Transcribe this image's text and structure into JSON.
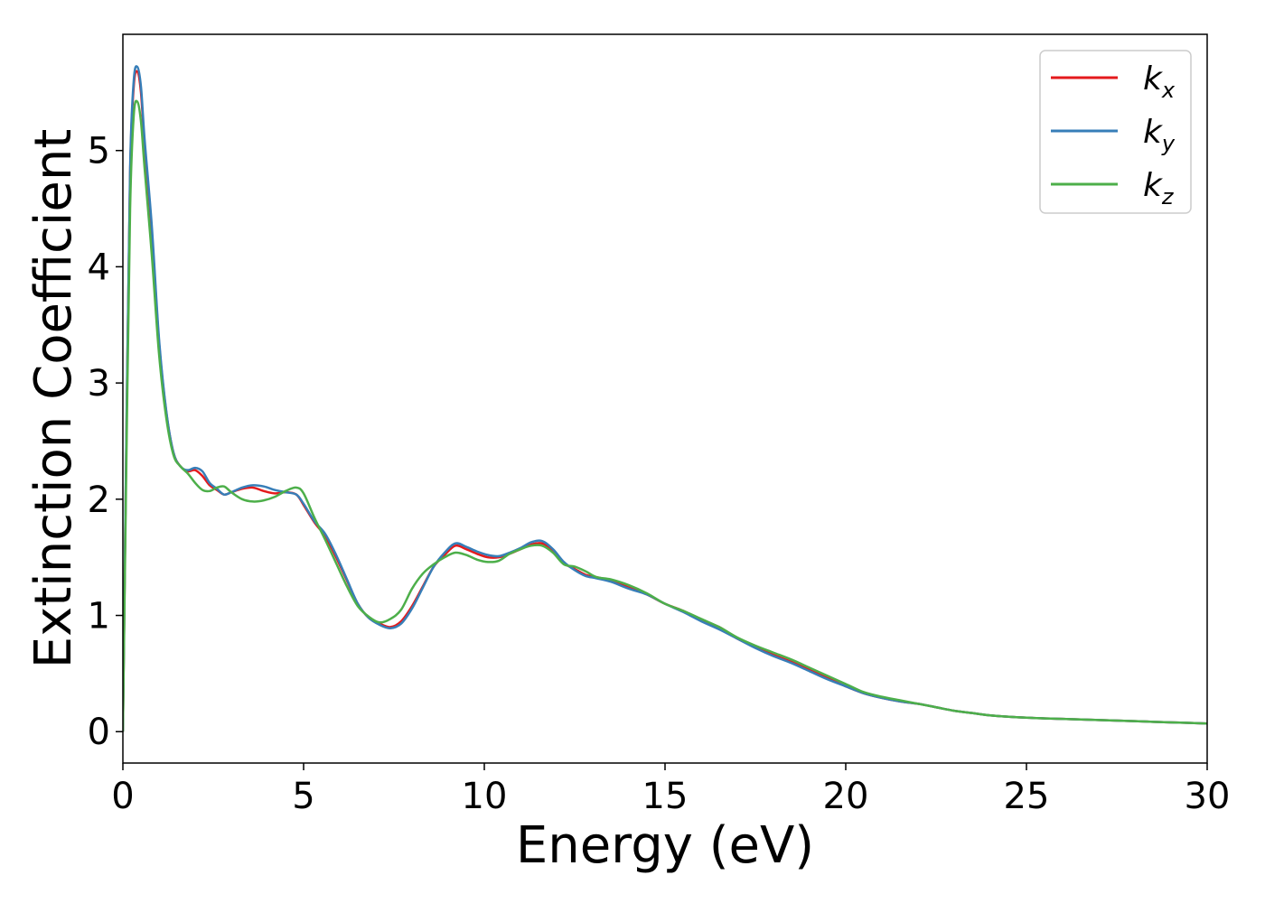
{
  "chart_data": {
    "type": "line",
    "xlabel": "Energy (eV)",
    "ylabel": "Extinction Coefficient",
    "xlim": [
      0,
      30
    ],
    "ylim": [
      -0.27,
      6.0
    ],
    "xticks": [
      0,
      5,
      10,
      15,
      20,
      25,
      30
    ],
    "yticks": [
      0,
      1,
      2,
      3,
      4,
      5
    ],
    "grid": false,
    "legend_position": "top-right",
    "series": [
      {
        "name": "k",
        "subscript": "x",
        "color": "#e41a1c",
        "x": [
          0,
          0.1,
          0.2,
          0.3,
          0.4,
          0.5,
          0.6,
          0.8,
          1.0,
          1.2,
          1.4,
          1.6,
          1.8,
          2.0,
          2.2,
          2.4,
          2.6,
          2.8,
          3.0,
          3.3,
          3.6,
          3.9,
          4.2,
          4.5,
          4.8,
          5.0,
          5.3,
          5.6,
          5.9,
          6.2,
          6.5,
          6.8,
          7.1,
          7.4,
          7.7,
          8.0,
          8.3,
          8.6,
          8.9,
          9.2,
          9.5,
          9.8,
          10.1,
          10.4,
          10.7,
          11.0,
          11.3,
          11.6,
          11.9,
          12.2,
          12.5,
          12.8,
          13.1,
          13.5,
          14.0,
          14.5,
          15.0,
          15.5,
          16.0,
          16.5,
          17.0,
          17.5,
          18.0,
          18.5,
          19.0,
          19.5,
          20.0,
          20.5,
          21.0,
          21.5,
          22.0,
          22.5,
          23.0,
          23.5,
          24.0,
          25.0,
          26.0,
          27.0,
          28.0,
          29.0,
          30.0
        ],
        "values": [
          0.0,
          2.6,
          4.8,
          5.55,
          5.68,
          5.5,
          5.05,
          4.3,
          3.35,
          2.75,
          2.4,
          2.28,
          2.24,
          2.25,
          2.2,
          2.12,
          2.08,
          2.04,
          2.06,
          2.09,
          2.1,
          2.07,
          2.05,
          2.06,
          2.04,
          1.95,
          1.8,
          1.68,
          1.5,
          1.3,
          1.1,
          0.98,
          0.93,
          0.9,
          0.95,
          1.08,
          1.25,
          1.42,
          1.52,
          1.6,
          1.57,
          1.53,
          1.5,
          1.5,
          1.53,
          1.57,
          1.61,
          1.62,
          1.56,
          1.45,
          1.4,
          1.35,
          1.33,
          1.3,
          1.24,
          1.18,
          1.1,
          1.04,
          0.96,
          0.9,
          0.8,
          0.73,
          0.66,
          0.6,
          0.53,
          0.46,
          0.39,
          0.33,
          0.29,
          0.26,
          0.24,
          0.21,
          0.18,
          0.16,
          0.14,
          0.12,
          0.11,
          0.1,
          0.09,
          0.08,
          0.07
        ]
      },
      {
        "name": "k",
        "subscript": "y",
        "color": "#377eb8",
        "x": [
          0,
          0.1,
          0.2,
          0.3,
          0.4,
          0.5,
          0.6,
          0.8,
          1.0,
          1.2,
          1.4,
          1.6,
          1.8,
          2.0,
          2.2,
          2.4,
          2.6,
          2.8,
          3.0,
          3.3,
          3.6,
          3.9,
          4.2,
          4.5,
          4.8,
          5.0,
          5.3,
          5.6,
          5.9,
          6.2,
          6.5,
          6.8,
          7.1,
          7.4,
          7.7,
          8.0,
          8.3,
          8.6,
          8.9,
          9.2,
          9.5,
          9.8,
          10.1,
          10.4,
          10.7,
          11.0,
          11.3,
          11.6,
          11.9,
          12.2,
          12.5,
          12.8,
          13.1,
          13.5,
          14.0,
          14.5,
          15.0,
          15.5,
          16.0,
          16.5,
          17.0,
          17.5,
          18.0,
          18.5,
          19.0,
          19.5,
          20.0,
          20.5,
          21.0,
          21.5,
          22.0,
          22.5,
          23.0,
          23.5,
          24.0,
          25.0,
          26.0,
          27.0,
          28.0,
          29.0,
          30.0
        ],
        "values": [
          0.0,
          2.65,
          4.85,
          5.6,
          5.72,
          5.55,
          5.1,
          4.35,
          3.38,
          2.76,
          2.4,
          2.28,
          2.25,
          2.27,
          2.24,
          2.14,
          2.09,
          2.04,
          2.06,
          2.1,
          2.12,
          2.11,
          2.08,
          2.06,
          2.04,
          1.96,
          1.81,
          1.7,
          1.52,
          1.31,
          1.1,
          0.98,
          0.92,
          0.89,
          0.93,
          1.06,
          1.24,
          1.42,
          1.54,
          1.62,
          1.59,
          1.55,
          1.52,
          1.51,
          1.54,
          1.58,
          1.63,
          1.64,
          1.57,
          1.46,
          1.39,
          1.34,
          1.32,
          1.29,
          1.23,
          1.18,
          1.1,
          1.03,
          0.95,
          0.88,
          0.8,
          0.72,
          0.65,
          0.59,
          0.52,
          0.45,
          0.39,
          0.33,
          0.29,
          0.26,
          0.24,
          0.21,
          0.18,
          0.16,
          0.14,
          0.12,
          0.11,
          0.1,
          0.09,
          0.08,
          0.07
        ]
      },
      {
        "name": "k",
        "subscript": "z",
        "color": "#4daf4a",
        "x": [
          0,
          0.1,
          0.2,
          0.3,
          0.4,
          0.5,
          0.6,
          0.8,
          1.0,
          1.2,
          1.4,
          1.6,
          1.8,
          2.0,
          2.2,
          2.4,
          2.6,
          2.8,
          3.0,
          3.3,
          3.6,
          3.9,
          4.2,
          4.5,
          4.8,
          5.0,
          5.3,
          5.6,
          5.9,
          6.2,
          6.5,
          6.8,
          7.1,
          7.4,
          7.7,
          8.0,
          8.3,
          8.6,
          8.9,
          9.2,
          9.5,
          9.8,
          10.1,
          10.4,
          10.7,
          11.0,
          11.3,
          11.6,
          11.9,
          12.2,
          12.5,
          12.8,
          13.1,
          13.5,
          14.0,
          14.5,
          15.0,
          15.5,
          16.0,
          16.5,
          17.0,
          17.5,
          18.0,
          18.5,
          19.0,
          19.5,
          20.0,
          20.5,
          21.0,
          21.5,
          22.0,
          22.5,
          23.0,
          23.5,
          24.0,
          25.0,
          26.0,
          27.0,
          28.0,
          29.0,
          30.0
        ],
        "values": [
          0.0,
          2.4,
          4.5,
          5.3,
          5.42,
          5.25,
          4.85,
          4.1,
          3.25,
          2.7,
          2.38,
          2.28,
          2.22,
          2.14,
          2.08,
          2.07,
          2.1,
          2.11,
          2.06,
          2.0,
          1.98,
          1.99,
          2.02,
          2.07,
          2.1,
          2.05,
          1.84,
          1.65,
          1.45,
          1.25,
          1.08,
          0.99,
          0.94,
          0.97,
          1.05,
          1.23,
          1.36,
          1.44,
          1.5,
          1.54,
          1.52,
          1.48,
          1.46,
          1.47,
          1.53,
          1.57,
          1.6,
          1.6,
          1.54,
          1.44,
          1.42,
          1.38,
          1.33,
          1.31,
          1.26,
          1.19,
          1.1,
          1.04,
          0.97,
          0.9,
          0.81,
          0.74,
          0.68,
          0.62,
          0.55,
          0.48,
          0.41,
          0.34,
          0.3,
          0.27,
          0.24,
          0.21,
          0.18,
          0.16,
          0.14,
          0.12,
          0.11,
          0.1,
          0.09,
          0.08,
          0.07
        ]
      }
    ]
  }
}
